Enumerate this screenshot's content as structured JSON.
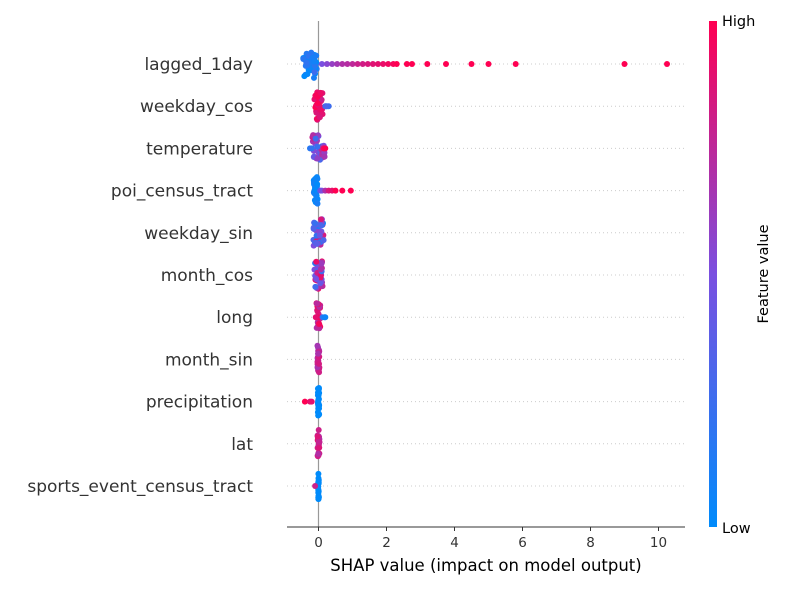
{
  "chart_data": {
    "type": "scatter",
    "subtype": "shap-beeswarm-summary",
    "xlabel": "SHAP value (impact on model output)",
    "xlim": [
      -0.9,
      10.8
    ],
    "xticks": [
      0,
      2,
      4,
      6,
      8,
      10
    ],
    "colorbar": {
      "label": "Feature value",
      "high": "High",
      "low": "Low",
      "color_low": "#008bfb",
      "color_high": "#ff0052"
    },
    "grid": "dotted row guides",
    "features": [
      {
        "name": "lagged_1day",
        "core": {
          "center": -0.25,
          "spread": 0.2,
          "count": 40,
          "tone": 0.1,
          "tone_spread": 0.15
        },
        "points": [
          {
            "x": 0.1,
            "c": 0.5
          },
          {
            "x": 0.25,
            "c": 0.55
          },
          {
            "x": 0.4,
            "c": 0.6
          },
          {
            "x": 0.55,
            "c": 0.65
          },
          {
            "x": 0.7,
            "c": 0.7
          },
          {
            "x": 0.85,
            "c": 0.72
          },
          {
            "x": 1.0,
            "c": 0.75
          },
          {
            "x": 1.15,
            "c": 0.8
          },
          {
            "x": 1.3,
            "c": 0.82
          },
          {
            "x": 1.45,
            "c": 0.85
          },
          {
            "x": 1.6,
            "c": 0.88
          },
          {
            "x": 1.75,
            "c": 0.9
          },
          {
            "x": 1.9,
            "c": 0.92
          },
          {
            "x": 2.05,
            "c": 0.95
          },
          {
            "x": 2.2,
            "c": 0.97
          },
          {
            "x": 2.3,
            "c": 1
          },
          {
            "x": 2.6,
            "c": 1
          },
          {
            "x": 2.75,
            "c": 1
          },
          {
            "x": 3.2,
            "c": 1
          },
          {
            "x": 3.75,
            "c": 1
          },
          {
            "x": 4.5,
            "c": 1
          },
          {
            "x": 5.0,
            "c": 1
          },
          {
            "x": 5.8,
            "c": 1
          },
          {
            "x": 9.0,
            "c": 1
          },
          {
            "x": 10.25,
            "c": 1
          }
        ]
      },
      {
        "name": "weekday_cos",
        "core": {
          "center": 0.0,
          "spread": 0.12,
          "count": 40,
          "tone": 0.9,
          "tone_spread": 0.1
        },
        "points": [
          {
            "x": 0.2,
            "c": 0.25
          },
          {
            "x": 0.25,
            "c": 0.2
          },
          {
            "x": 0.3,
            "c": 0.25
          },
          {
            "x": 0.22,
            "c": 0.3
          }
        ]
      },
      {
        "name": "temperature",
        "core": {
          "center": 0.0,
          "spread": 0.18,
          "count": 40,
          "tone": 0.5,
          "tone_spread": 0.3
        },
        "points": [
          {
            "x": -0.25,
            "c": 0.15
          },
          {
            "x": -0.2,
            "c": 0.2
          },
          {
            "x": 0.15,
            "c": 0.95
          },
          {
            "x": 0.2,
            "c": 1
          }
        ]
      },
      {
        "name": "poi_census_tract",
        "core": {
          "center": -0.08,
          "spread": 0.06,
          "count": 30,
          "tone": 0.05,
          "tone_spread": 0.05
        },
        "points": [
          {
            "x": 0.05,
            "c": 0.4
          },
          {
            "x": 0.1,
            "c": 0.5
          },
          {
            "x": 0.2,
            "c": 0.7
          },
          {
            "x": 0.3,
            "c": 0.85
          },
          {
            "x": 0.4,
            "c": 0.9
          },
          {
            "x": 0.5,
            "c": 1
          },
          {
            "x": 0.7,
            "c": 1
          },
          {
            "x": 0.95,
            "c": 1
          }
        ]
      },
      {
        "name": "weekday_sin",
        "core": {
          "center": 0.0,
          "spread": 0.15,
          "count": 40,
          "tone": 0.5,
          "tone_spread": 0.45
        },
        "points": []
      },
      {
        "name": "month_cos",
        "core": {
          "center": 0.0,
          "spread": 0.12,
          "count": 40,
          "tone": 0.5,
          "tone_spread": 0.45
        },
        "points": []
      },
      {
        "name": "long",
        "core": {
          "center": 0.0,
          "spread": 0.06,
          "count": 30,
          "tone": 0.85,
          "tone_spread": 0.15
        },
        "points": [
          {
            "x": -0.08,
            "c": 0.9
          },
          {
            "x": 0.12,
            "c": 0.2
          },
          {
            "x": 0.18,
            "c": 0.1
          },
          {
            "x": 0.2,
            "c": 0.05
          }
        ]
      },
      {
        "name": "month_sin",
        "core": {
          "center": 0.0,
          "spread": 0.03,
          "count": 30,
          "tone": 0.75,
          "tone_spread": 0.1
        },
        "points": []
      },
      {
        "name": "precipitation",
        "core": {
          "center": 0.0,
          "spread": 0.02,
          "count": 30,
          "tone": 0.0,
          "tone_spread": 0.0
        },
        "points": [
          {
            "x": -0.4,
            "c": 1
          },
          {
            "x": -0.25,
            "c": 0.9
          },
          {
            "x": -0.2,
            "c": 0.9
          }
        ]
      },
      {
        "name": "lat",
        "core": {
          "center": 0.0,
          "spread": 0.03,
          "count": 30,
          "tone": 0.8,
          "tone_spread": 0.1
        },
        "points": []
      },
      {
        "name": "sports_event_census_tract",
        "core": {
          "center": 0.0,
          "spread": 0.01,
          "count": 30,
          "tone": 0.0,
          "tone_spread": 0.0
        },
        "points": [
          {
            "x": -0.1,
            "c": 0.8
          }
        ]
      }
    ]
  }
}
